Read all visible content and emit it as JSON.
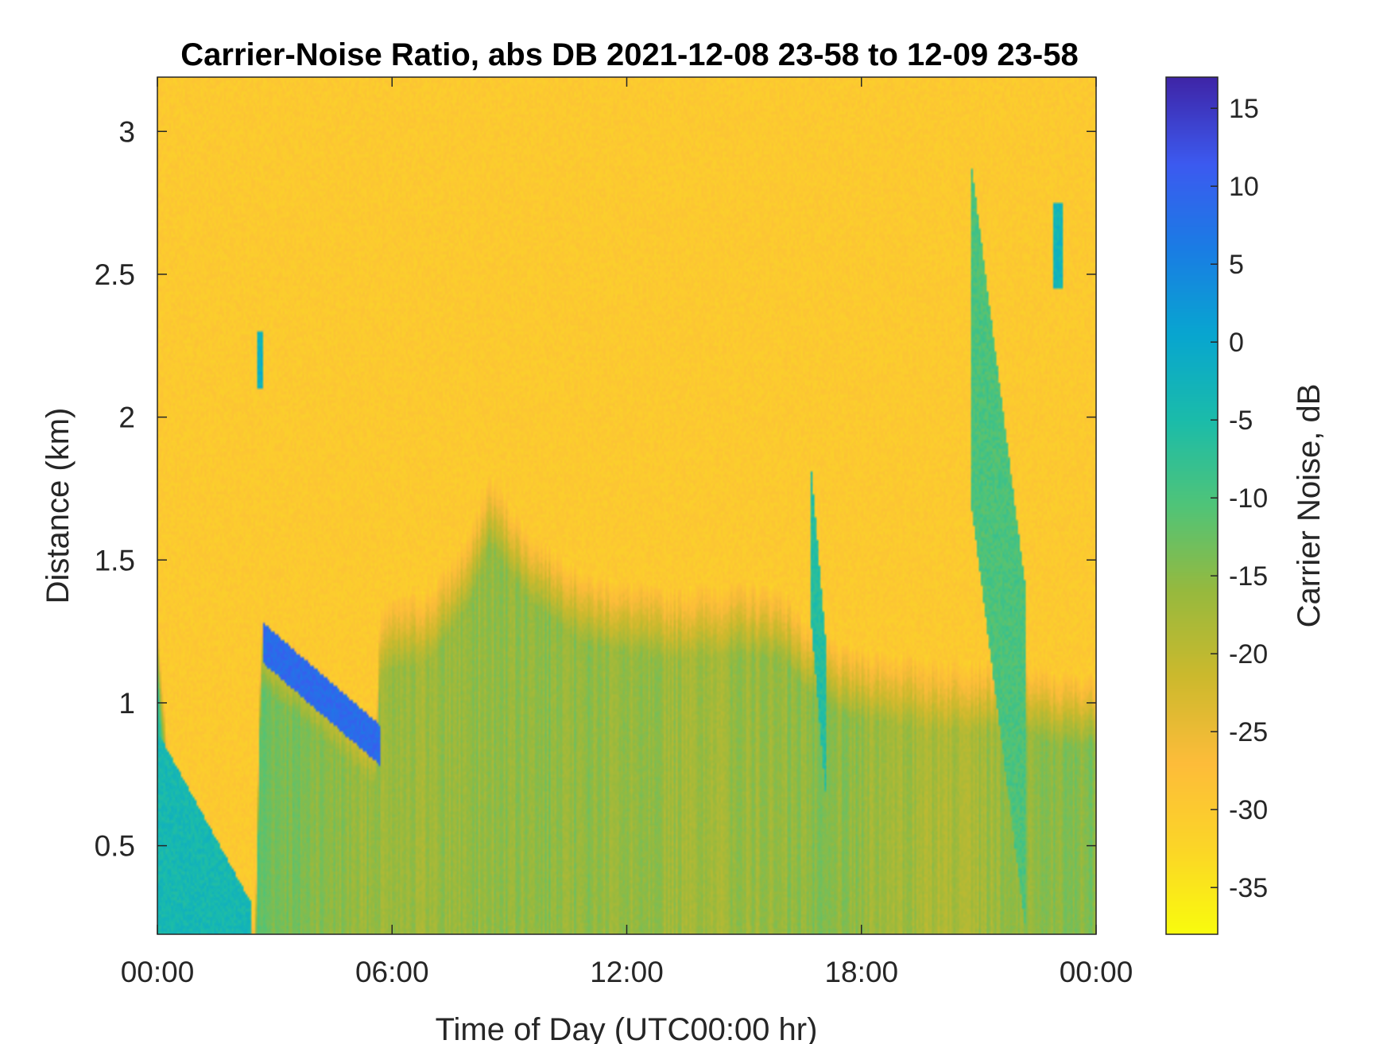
{
  "chart_data": {
    "type": "heatmap",
    "title": "Carrier-Noise Ratio, abs DB 2021-12-08 23-58 to 12-09 23-58",
    "xlabel": "Time of Day (UTC00:00 hr)",
    "ylabel": "Distance (km)",
    "colorbar_label": "Carrier Noise, dB",
    "x_unit": "hour",
    "xlim": [
      0,
      24
    ],
    "ylim": [
      0.19,
      3.19
    ],
    "clim": [
      -38,
      17
    ],
    "colormap": "parula",
    "x_ticks": [
      {
        "value": 0,
        "label": "00:00"
      },
      {
        "value": 6,
        "label": "06:00"
      },
      {
        "value": 12,
        "label": "12:00"
      },
      {
        "value": 18,
        "label": "18:00"
      },
      {
        "value": 24,
        "label": "00:00"
      }
    ],
    "y_ticks": [
      {
        "value": 0.5,
        "label": "0.5"
      },
      {
        "value": 1,
        "label": "1"
      },
      {
        "value": 1.5,
        "label": "1.5"
      },
      {
        "value": 2,
        "label": "2"
      },
      {
        "value": 2.5,
        "label": "2.5"
      },
      {
        "value": 3,
        "label": "3"
      }
    ],
    "colorbar_ticks": [
      {
        "value": -35,
        "label": "-35"
      },
      {
        "value": -30,
        "label": "-30"
      },
      {
        "value": -25,
        "label": "-25"
      },
      {
        "value": -20,
        "label": "-20"
      },
      {
        "value": -15,
        "label": "-15"
      },
      {
        "value": -10,
        "label": "-10"
      },
      {
        "value": -5,
        "label": "-5"
      },
      {
        "value": 0,
        "label": "0"
      },
      {
        "value": 5,
        "label": "5"
      },
      {
        "value": 10,
        "label": "10"
      },
      {
        "value": 15,
        "label": "15"
      }
    ],
    "background_value_db": -30,
    "boundary_layer_top_km": [
      {
        "x": 0.0,
        "y": 1.3
      },
      {
        "x": 0.25,
        "y": 0.85
      },
      {
        "x": 0.75,
        "y": 0.6
      },
      {
        "x": 1.25,
        "y": 0.35
      },
      {
        "x": 1.75,
        "y": 0.22
      },
      {
        "x": 2.5,
        "y": 0.25
      },
      {
        "x": 2.65,
        "y": 1.3
      },
      {
        "x": 4.0,
        "y": 1.15
      },
      {
        "x": 5.6,
        "y": 0.95
      },
      {
        "x": 5.7,
        "y": 1.35
      },
      {
        "x": 7.0,
        "y": 1.4
      },
      {
        "x": 8.0,
        "y": 1.6
      },
      {
        "x": 8.5,
        "y": 1.8
      },
      {
        "x": 9.5,
        "y": 1.6
      },
      {
        "x": 11.0,
        "y": 1.45
      },
      {
        "x": 13.0,
        "y": 1.4
      },
      {
        "x": 15.0,
        "y": 1.42
      },
      {
        "x": 16.0,
        "y": 1.4
      },
      {
        "x": 16.5,
        "y": 1.3
      },
      {
        "x": 17.5,
        "y": 1.2
      },
      {
        "x": 20.0,
        "y": 1.15
      },
      {
        "x": 22.0,
        "y": 1.15
      },
      {
        "x": 23.0,
        "y": 1.1
      },
      {
        "x": 24.0,
        "y": 1.1
      }
    ],
    "layer_values_db": [
      {
        "x": 0.0,
        "v": -7
      },
      {
        "x": 2.0,
        "v": -10
      },
      {
        "x": 3.0,
        "v": -13
      },
      {
        "x": 6.0,
        "v": -17
      },
      {
        "x": 10.0,
        "v": -15
      },
      {
        "x": 14.0,
        "v": -17
      },
      {
        "x": 17.0,
        "v": -15
      },
      {
        "x": 20.0,
        "v": -18
      },
      {
        "x": 24.0,
        "v": -14
      }
    ],
    "enhanced_regions": [
      {
        "x_start": 2.7,
        "x_end": 5.7,
        "y_top_start": 1.28,
        "y_top_end": 0.92,
        "thickness_km": 0.14,
        "value_db": 9
      },
      {
        "x_start": 2.55,
        "x_end": 2.7,
        "y_top_start": 2.3,
        "y_top_end": 2.3,
        "thickness_km": 0.2,
        "value_db": -2
      },
      {
        "x_start": 22.9,
        "x_end": 23.15,
        "y_top_start": 2.75,
        "y_top_end": 2.75,
        "thickness_km": 0.3,
        "value_db": -3
      },
      {
        "x_start": 16.7,
        "x_end": 17.1,
        "y_top_start": 1.85,
        "y_top_end": 1.2,
        "thickness_km": 0.55,
        "value_db": -6
      },
      {
        "x_start": 20.8,
        "x_end": 22.2,
        "y_top_start": 2.9,
        "y_top_end": 1.4,
        "thickness_km": 1.2,
        "value_db": -10
      },
      {
        "x_start": 0.0,
        "x_end": 2.4,
        "y_top_start": 0.9,
        "y_top_end": 0.3,
        "thickness_km": 0.7,
        "value_db": -4
      }
    ],
    "grid": false,
    "colorbar_position": "right"
  }
}
